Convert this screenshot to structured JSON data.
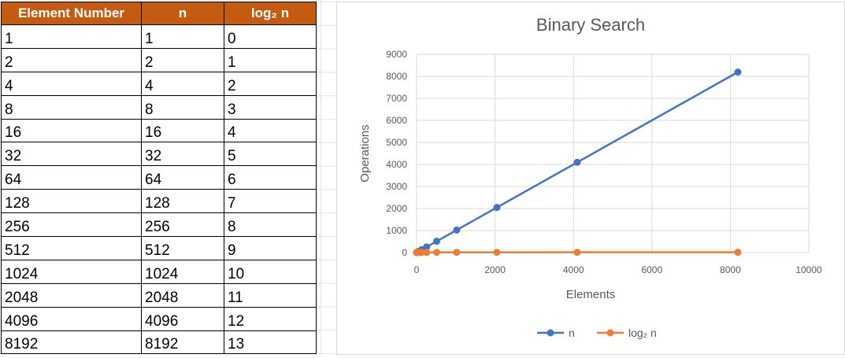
{
  "table": {
    "headers": [
      "Element Number",
      "n",
      "log₂ n"
    ],
    "rows": [
      [
        "1",
        "1",
        "0"
      ],
      [
        "2",
        "2",
        "1"
      ],
      [
        "4",
        "4",
        "2"
      ],
      [
        "8",
        "8",
        "3"
      ],
      [
        "16",
        "16",
        "4"
      ],
      [
        "32",
        "32",
        "5"
      ],
      [
        "64",
        "64",
        "6"
      ],
      [
        "128",
        "128",
        "7"
      ],
      [
        "256",
        "256",
        "8"
      ],
      [
        "512",
        "512",
        "9"
      ],
      [
        "1024",
        "1024",
        "10"
      ],
      [
        "2048",
        "2048",
        "11"
      ],
      [
        "4096",
        "4096",
        "12"
      ],
      [
        "8192",
        "8192",
        "13"
      ]
    ],
    "header_color": "#c55a11"
  },
  "chart_data": {
    "type": "scatter",
    "title": "Binary Search",
    "xlabel": "Elements",
    "ylabel": "Operations",
    "xlim": [
      0,
      10000
    ],
    "ylim": [
      0,
      9000
    ],
    "xticks": [
      0,
      2000,
      4000,
      6000,
      8000,
      10000
    ],
    "yticks": [
      0,
      1000,
      2000,
      3000,
      4000,
      5000,
      6000,
      7000,
      8000,
      9000
    ],
    "grid": true,
    "legend": "bottom",
    "x": [
      1,
      2,
      4,
      8,
      16,
      32,
      64,
      128,
      256,
      512,
      1024,
      2048,
      4096,
      8192
    ],
    "series": [
      {
        "name": "n",
        "color": "#4472c4",
        "values": [
          1,
          2,
          4,
          8,
          16,
          32,
          64,
          128,
          256,
          512,
          1024,
          2048,
          4096,
          8192
        ]
      },
      {
        "name": "log₂ n",
        "color": "#ed7d31",
        "values": [
          0,
          1,
          2,
          3,
          4,
          5,
          6,
          7,
          8,
          9,
          10,
          11,
          12,
          13
        ]
      }
    ]
  }
}
